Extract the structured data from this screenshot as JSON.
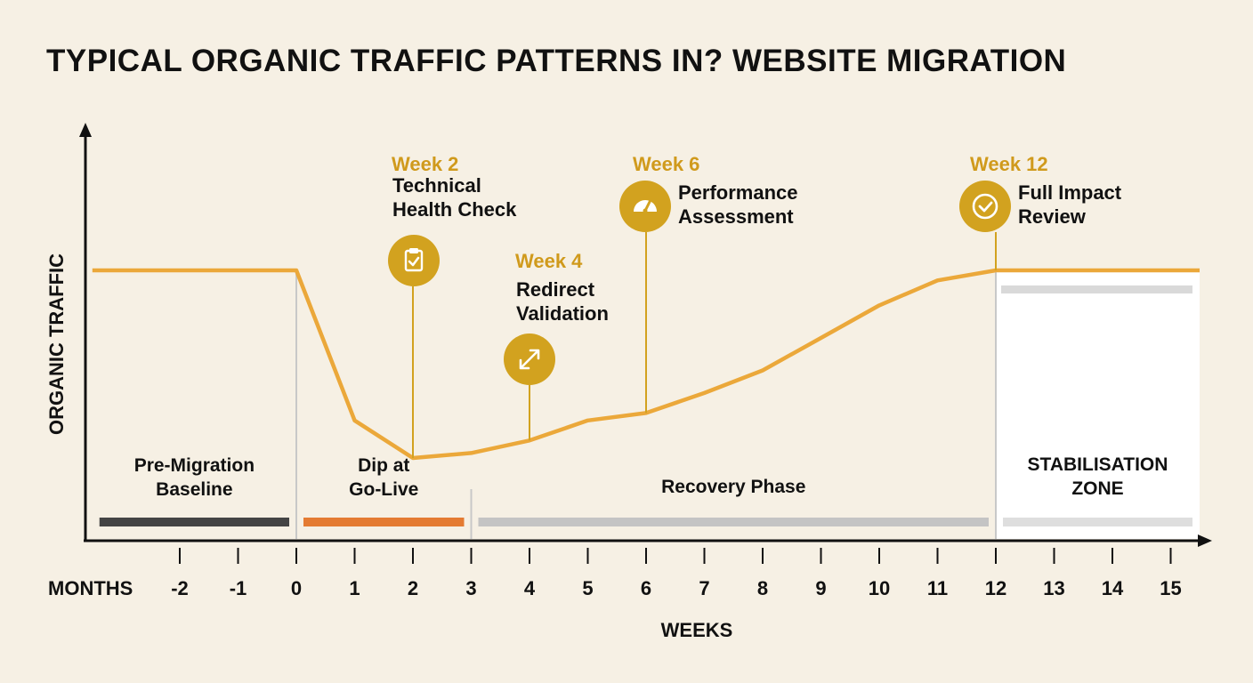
{
  "title": "TYPICAL ORGANIC TRAFFIC PATTERNS IN? WEBSITE MIGRATION",
  "colors": {
    "background": "#f6f0e4",
    "line": "#eba83a",
    "accent": "#d2a21f",
    "accent_text": "#d09a1c",
    "axis": "#111111",
    "divider": "#c8c8c8",
    "zone_fill": "#ffffff"
  },
  "chart_data": {
    "type": "line",
    "title": "TYPICAL ORGANIC TRAFFIC PATTERNS IN? WEBSITE MIGRATION",
    "xlabel": "WEEKS",
    "ylabel": "ORGANIC TRAFFIC",
    "x_row_label": "MONTHS",
    "xlim": [
      -3.5,
      15.5
    ],
    "ticks": [
      -2,
      -1,
      0,
      1,
      2,
      3,
      4,
      5,
      6,
      7,
      8,
      9,
      10,
      11,
      12,
      13,
      14,
      15
    ],
    "series": [
      {
        "x": [
          -3.5,
          0,
          1,
          2,
          3,
          4,
          5,
          6,
          7,
          8,
          9,
          10,
          11,
          12,
          15.5
        ],
        "y": [
          100,
          100,
          40,
          25,
          27,
          32,
          40,
          43,
          51,
          60,
          73,
          86,
          96,
          100,
          100
        ]
      }
    ],
    "milestones": [
      {
        "x": 2,
        "week": "Week 2",
        "label_lines": [
          "Technical",
          "Health Check"
        ],
        "icon": "clipboard-check-icon"
      },
      {
        "x": 4,
        "week": "Week 4",
        "label_lines": [
          "Redirect",
          "Validation"
        ],
        "icon": "expand-arrows-icon"
      },
      {
        "x": 6,
        "week": "Week 6",
        "label_lines": [
          "Performance",
          "Assessment"
        ],
        "icon": "gauge-icon"
      },
      {
        "x": 12,
        "week": "Week 12",
        "label_lines": [
          "Full Impact",
          "Review"
        ],
        "icon": "check-circle-icon"
      }
    ],
    "phases": [
      {
        "name_lines": [
          "Pre-Migration",
          "Baseline"
        ],
        "from": -3.5,
        "to": 0,
        "color": "#444444"
      },
      {
        "name_lines": [
          "Dip at",
          "Go-Live"
        ],
        "from": 0,
        "to": 3,
        "color": "#e47b32"
      },
      {
        "name_lines": [
          "Recovery Phase"
        ],
        "from": 3,
        "to": 12,
        "color": "#c4c4c4"
      },
      {
        "name_lines": [
          "STABILISATION",
          "ZONE"
        ],
        "from": 12,
        "to": 15.5,
        "color": "#dedede"
      }
    ]
  }
}
